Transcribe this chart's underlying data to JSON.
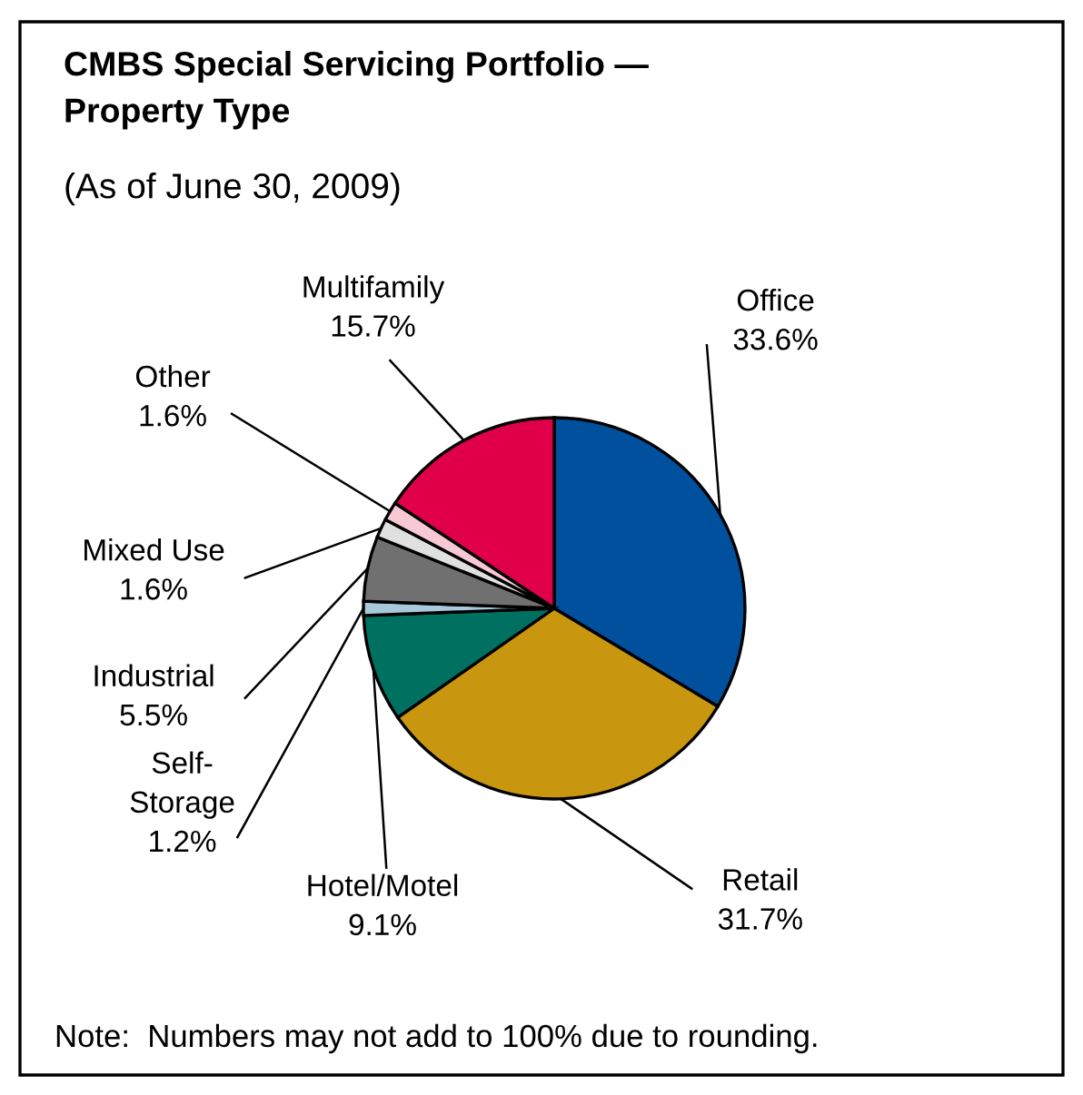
{
  "chart_data": {
    "type": "pie",
    "title": "CMBS Special Servicing Portfolio —\nProperty Type",
    "subtitle": "(As of June 30, 2009)",
    "categories": [
      "Office",
      "Retail",
      "Hotel/Motel",
      "Self-\nStorage",
      "Industrial",
      "Mixed Use",
      "Other",
      "Multifamily"
    ],
    "values": [
      33.6,
      31.7,
      9.1,
      1.2,
      5.5,
      1.6,
      1.6,
      15.7
    ],
    "colors": [
      "#00509e",
      "#c8960f",
      "#007060",
      "#a8c8dc",
      "#707070",
      "#e0e0e0",
      "#f8c8d4",
      "#e0004a"
    ],
    "value_labels": [
      "33.6%",
      "31.7%",
      "9.1%",
      "1.2%",
      "5.5%",
      "1.6%",
      "1.6%",
      "15.7%"
    ],
    "annotations": [
      "Note:  Numbers may not add to 100% due to rounding."
    ]
  }
}
